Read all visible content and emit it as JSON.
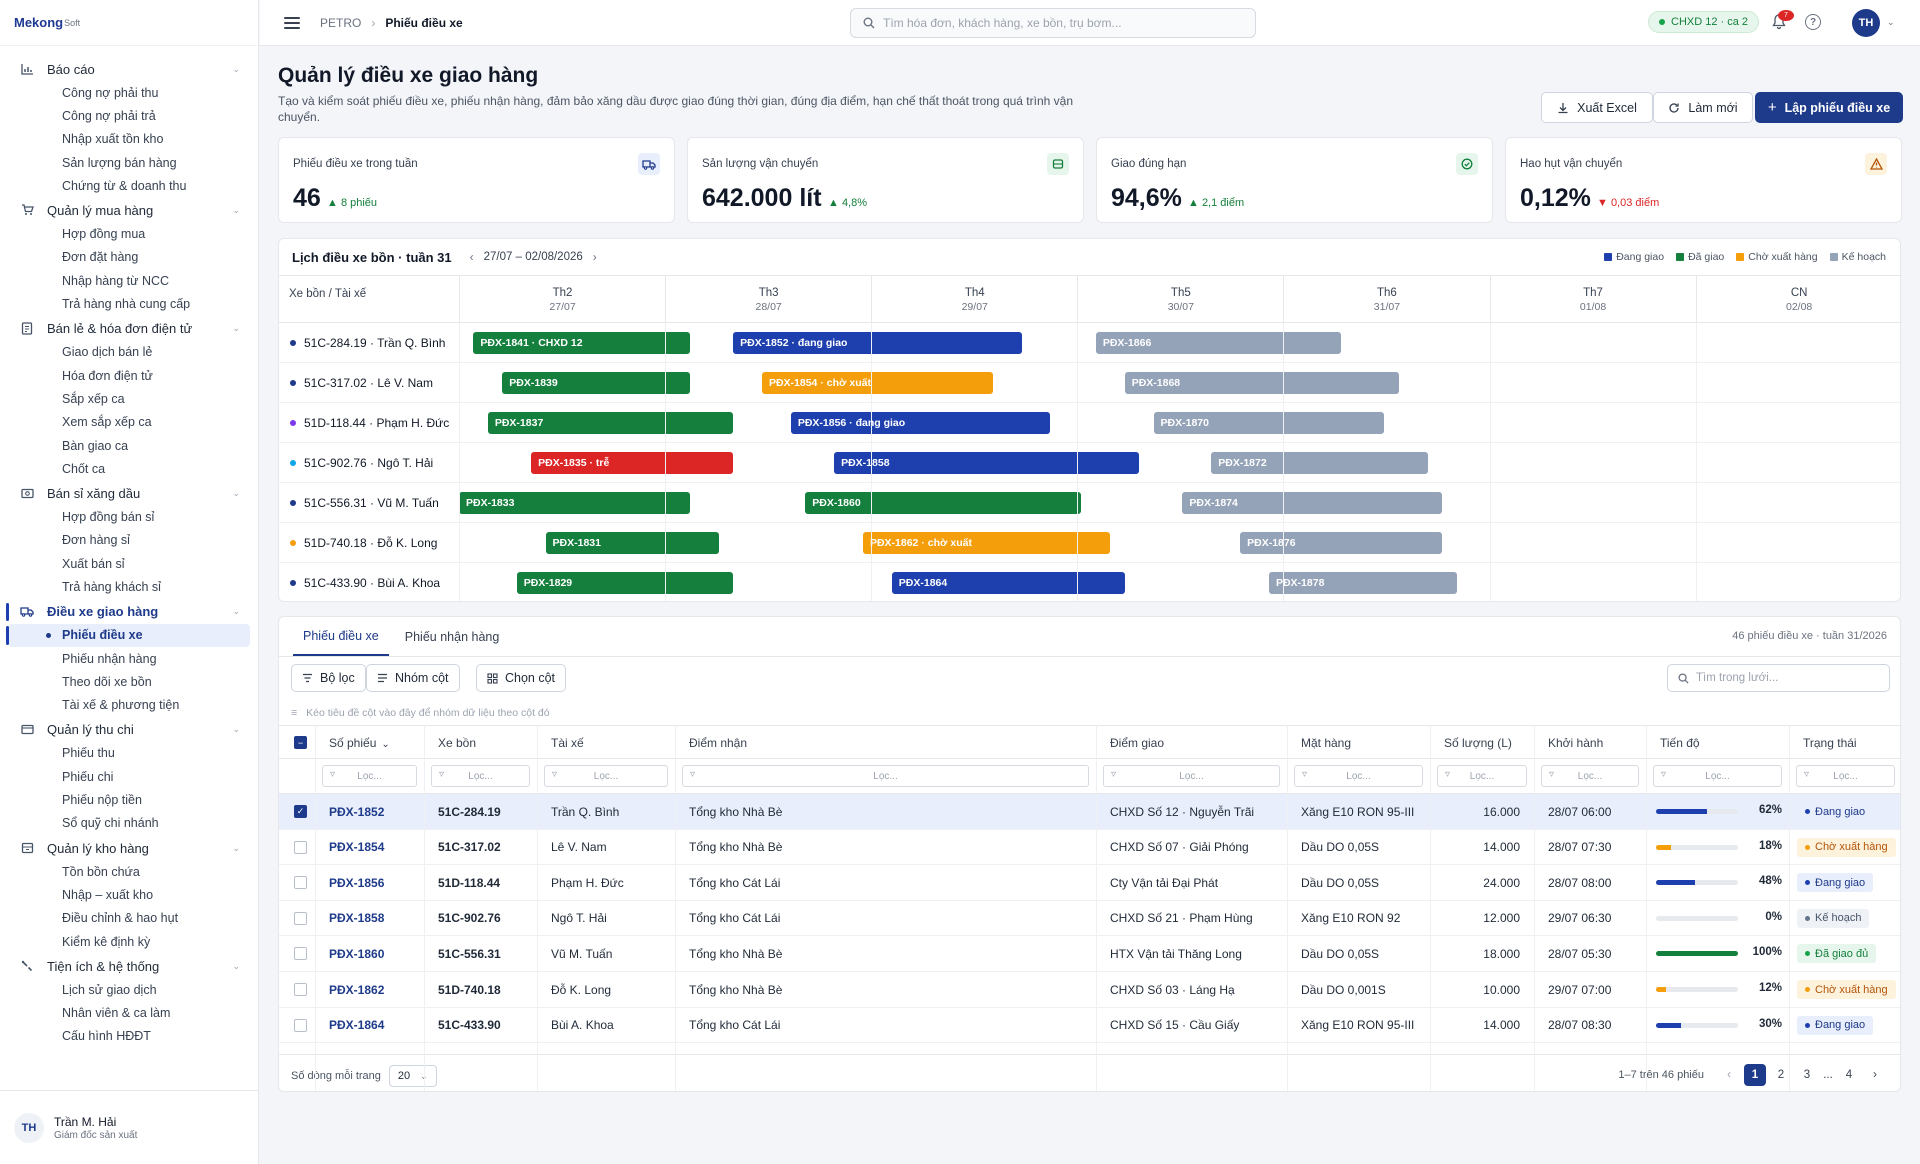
{
  "brand": {
    "name": "Mekong",
    "suffix": "Soft"
  },
  "sidebar": {
    "groups": [
      {
        "label": "Báo cáo",
        "icon": "chart-icon",
        "items": [
          "Công nợ phải thu",
          "Công nợ phải trả",
          "Nhập xuất tồn kho",
          "Sản lượng bán hàng",
          "Chứng từ & doanh thu"
        ]
      },
      {
        "label": "Quản lý mua hàng",
        "icon": "cart-icon",
        "items": [
          "Hợp đồng mua",
          "Đơn đặt hàng",
          "Nhập hàng từ NCC",
          "Trả hàng nhà cung cấp"
        ]
      },
      {
        "label": "Bán lẻ & hóa đơn điện tử",
        "icon": "receipt-icon",
        "items": [
          "Giao dịch bán lẻ",
          "Hóa đơn điện tử",
          "Sắp xếp ca",
          "Xem sắp xếp ca",
          "Bàn giao ca",
          "Chốt ca"
        ]
      },
      {
        "label": "Bán sỉ xăng dầu",
        "icon": "cash-icon",
        "items": [
          "Hợp đồng bán sỉ",
          "Đơn hàng sỉ",
          "Xuất bán sỉ",
          "Trả hàng khách sỉ"
        ]
      },
      {
        "label": "Điều xe giao hàng",
        "icon": "truck-icon",
        "active": true,
        "items": [
          "Phiếu điều xe",
          "Phiếu nhận hàng",
          "Theo dõi xe bồn",
          "Tài xế & phương tiện"
        ]
      },
      {
        "label": "Quản lý thu chi",
        "icon": "wallet-icon",
        "items": [
          "Phiếu thu",
          "Phiếu chi",
          "Phiếu nộp tiền",
          "Sổ quỹ chi nhánh"
        ]
      },
      {
        "label": "Quản lý kho hàng",
        "icon": "warehouse-icon",
        "items": [
          "Tồn bồn chứa",
          "Nhập – xuất kho",
          "Điều chỉnh & hao hụt",
          "Kiểm kê định kỳ"
        ]
      },
      {
        "label": "Tiện ích & hệ thống",
        "icon": "tools-icon",
        "items": [
          "Lịch sử giao dịch",
          "Nhân viên & ca làm",
          "Cấu hình HĐĐT"
        ]
      }
    ],
    "active_item": "Phiếu điều xe"
  },
  "user": {
    "initials": "TH",
    "name": "Trần M. Hải",
    "role": "Giám đốc sản xuất"
  },
  "topbar": {
    "breadcrumb_root": "PETRO",
    "breadcrumb_current": "Phiếu điều xe",
    "search_placeholder": "Tìm hóa đơn, khách hàng, xe bồn, trụ bơm...",
    "shift": "CHXD 12 · ca 2",
    "notif_count": "7",
    "help": "?",
    "avatar": "TH"
  },
  "page": {
    "title": "Quản lý điều xe giao hàng",
    "description": "Tạo và kiểm soát phiếu điều xe, phiếu nhận hàng, đảm bảo xăng dầu được giao đúng thời gian, đúng địa điểm, hạn chế thất thoát trong quá trình vận chuyển.",
    "btn_export": "Xuất Excel",
    "btn_refresh": "Làm mới",
    "btn_create": "Lập phiếu điều xe"
  },
  "kpis": [
    {
      "label": "Phiếu điều xe trong tuần",
      "value": "46",
      "delta": "▲ 8 phiếu",
      "trend": "up",
      "icon": "truck-icon",
      "color": "#1e40af",
      "bg": "#e8eefb"
    },
    {
      "label": "Sản lượng vận chuyển",
      "value": "642.000 lít",
      "delta": "▲ 4,8%",
      "trend": "up",
      "icon": "tank-icon",
      "color": "#15803d",
      "bg": "#e7f6ec"
    },
    {
      "label": "Giao đúng hạn",
      "value": "94,6%",
      "delta": "▲ 2,1 điểm",
      "trend": "up",
      "icon": "check-circle-icon",
      "color": "#15803d",
      "bg": "#e7f6ec"
    },
    {
      "label": "Hao hụt vận chuyển",
      "value": "0,12%",
      "delta": "▼ 0,03 điểm",
      "trend": "down",
      "icon": "warning-icon",
      "color": "#b45309",
      "bg": "#fdf3dc"
    }
  ],
  "schedule": {
    "title": "Lịch điều xe bồn · tuần 31",
    "range": "27/07 – 02/08/2026",
    "column_label": "Xe bồn / Tài xế",
    "legend": [
      {
        "label": "Đang giao",
        "color": "#1e40af"
      },
      {
        "label": "Đã giao",
        "color": "#15803d"
      },
      {
        "label": "Chờ xuất hàng",
        "color": "#f59e0b"
      },
      {
        "label": "Kế hoạch",
        "color": "#94a3b8"
      }
    ],
    "days": [
      {
        "name": "Th2",
        "date": "27/07"
      },
      {
        "name": "Th3",
        "date": "28/07"
      },
      {
        "name": "Th4",
        "date": "29/07"
      },
      {
        "name": "Th5",
        "date": "30/07"
      },
      {
        "name": "Th6",
        "date": "31/07"
      },
      {
        "name": "Th7",
        "date": "01/08"
      },
      {
        "name": "CN",
        "date": "02/08"
      }
    ],
    "rows": [
      {
        "label": "51C-284.19 · Trần Q. Bình",
        "dot": "#1e3a8a",
        "bars": [
          {
            "text": "PĐX-1841 · CHXD 12",
            "status": "done",
            "start": 0.07,
            "end": 1.12
          },
          {
            "text": "PĐX-1852 · đang giao",
            "status": "progress",
            "start": 1.33,
            "end": 2.73
          },
          {
            "text": "PĐX-1866",
            "status": "plan",
            "start": 3.09,
            "end": 4.28
          }
        ]
      },
      {
        "label": "51C-317.02 · Lê V. Nam",
        "dot": "#1e3a8a",
        "bars": [
          {
            "text": "PĐX-1839",
            "status": "done",
            "start": 0.21,
            "end": 1.12
          },
          {
            "text": "PĐX-1854 · chờ xuất",
            "status": "wait",
            "start": 1.47,
            "end": 2.59
          },
          {
            "text": "PĐX-1868",
            "status": "plan",
            "start": 3.23,
            "end": 4.56
          }
        ]
      },
      {
        "label": "51D-118.44 · Phạm H. Đức",
        "dot": "#7c3aed",
        "bars": [
          {
            "text": "PĐX-1837",
            "status": "done",
            "start": 0.14,
            "end": 1.33
          },
          {
            "text": "PĐX-1856 · đang giao",
            "status": "progress",
            "start": 1.61,
            "end": 2.87
          },
          {
            "text": "PĐX-1870",
            "status": "plan",
            "start": 3.37,
            "end": 4.49
          }
        ]
      },
      {
        "label": "51C-902.76 · Ngô T. Hải",
        "dot": "#0ea5e9",
        "bars": [
          {
            "text": "PĐX-1835 · trễ",
            "status": "late",
            "start": 0.35,
            "end": 1.33
          },
          {
            "text": "PĐX-1858",
            "status": "progress",
            "start": 1.82,
            "end": 3.3
          },
          {
            "text": "PĐX-1872",
            "status": "plan",
            "start": 3.65,
            "end": 4.7
          }
        ]
      },
      {
        "label": "51C-556.31 · Vũ M. Tuấn",
        "dot": "#1e3a8a",
        "bars": [
          {
            "text": "PĐX-1833",
            "status": "done",
            "start": 0.0,
            "end": 1.12
          },
          {
            "text": "PĐX-1860",
            "status": "done",
            "start": 1.68,
            "end": 3.02
          },
          {
            "text": "PĐX-1874",
            "status": "plan",
            "start": 3.51,
            "end": 4.77
          }
        ]
      },
      {
        "label": "51D-740.18 · Đỗ K. Long",
        "dot": "#f59e0b",
        "bars": [
          {
            "text": "PĐX-1831",
            "status": "done",
            "start": 0.42,
            "end": 1.26
          },
          {
            "text": "PĐX-1862 · chờ xuất",
            "status": "wait",
            "start": 1.96,
            "end": 3.16
          },
          {
            "text": "PĐX-1876",
            "status": "plan",
            "start": 3.79,
            "end": 4.77
          }
        ]
      },
      {
        "label": "51C-433.90 · Bùi A. Khoa",
        "dot": "#1e3a8a",
        "bars": [
          {
            "text": "PĐX-1829",
            "status": "done",
            "start": 0.28,
            "end": 1.33
          },
          {
            "text": "PĐX-1864",
            "status": "progress",
            "start": 2.1,
            "end": 3.23
          },
          {
            "text": "PĐX-1878",
            "status": "plan",
            "start": 3.93,
            "end": 4.84
          }
        ]
      }
    ],
    "status_colors": {
      "done": "#15803d",
      "progress": "#1e40af",
      "wait": "#f59e0b",
      "plan": "#94a3b8",
      "late": "#dc2626"
    }
  },
  "table": {
    "tabs": [
      "Phiếu điều xe",
      "Phiếu nhận hàng"
    ],
    "count": "46 phiếu điều xe · tuần 31/2026",
    "btn_filter": "Bộ lọc",
    "btn_group": "Nhóm cột",
    "btn_columns": "Chọn cột",
    "grid_search": "Tìm trong lưới...",
    "group_hint": "Kéo tiêu đề cột vào đây để nhóm dữ liệu theo cột đó",
    "filter_placeholder": "Lọc...",
    "headers": [
      "Số phiếu",
      "Xe bồn",
      "Tài xế",
      "Điểm nhận",
      "Điểm giao",
      "Mặt hàng",
      "Số lượng (L)",
      "Khởi hành",
      "Tiến độ",
      "Trạng thái"
    ],
    "sort_indicator": "⌄",
    "rows": [
      {
        "selected": true,
        "id": "PĐX-1852",
        "truck": "51C-284.19",
        "driver": "Trần Q. Bình",
        "from": "Tổng kho Nhà Bè",
        "to": "CHXD Số 12 · Nguyễn Trãi",
        "product": "Xăng E10 RON 95-III",
        "qty": "16.000",
        "depart": "28/07 06:00",
        "progress": 62,
        "progress_label": "62%",
        "status": "Đang giao",
        "status_key": "progress"
      },
      {
        "selected": false,
        "id": "PĐX-1854",
        "truck": "51C-317.02",
        "driver": "Lê V. Nam",
        "from": "Tổng kho Nhà Bè",
        "to": "CHXD Số 07 · Giải Phóng",
        "product": "Dầu DO 0,05S",
        "qty": "14.000",
        "depart": "28/07 07:30",
        "progress": 18,
        "progress_label": "18%",
        "status": "Chờ xuất hàng",
        "status_key": "wait"
      },
      {
        "selected": false,
        "id": "PĐX-1856",
        "truck": "51D-118.44",
        "driver": "Phạm H. Đức",
        "from": "Tổng kho Cát Lái",
        "to": "Cty Vận tải Đại Phát",
        "product": "Dầu DO 0,05S",
        "qty": "24.000",
        "depart": "28/07 08:00",
        "progress": 48,
        "progress_label": "48%",
        "status": "Đang giao",
        "status_key": "progress"
      },
      {
        "selected": false,
        "id": "PĐX-1858",
        "truck": "51C-902.76",
        "driver": "Ngô T. Hải",
        "from": "Tổng kho Cát Lái",
        "to": "CHXD Số 21 · Phạm Hùng",
        "product": "Xăng E10 RON 92",
        "qty": "12.000",
        "depart": "29/07 06:30",
        "progress": 0,
        "progress_label": "0%",
        "status": "Kế hoạch",
        "status_key": "plan"
      },
      {
        "selected": false,
        "id": "PĐX-1860",
        "truck": "51C-556.31",
        "driver": "Vũ M. Tuấn",
        "from": "Tổng kho Nhà Bè",
        "to": "HTX Vận tải Thăng Long",
        "product": "Dầu DO 0,05S",
        "qty": "18.000",
        "depart": "28/07 05:30",
        "progress": 100,
        "progress_label": "100%",
        "status": "Đã giao đủ",
        "status_key": "done"
      },
      {
        "selected": false,
        "id": "PĐX-1862",
        "truck": "51D-740.18",
        "driver": "Đỗ K. Long",
        "from": "Tổng kho Nhà Bè",
        "to": "CHXD Số 03 · Láng Hạ",
        "product": "Dầu DO 0,001S",
        "qty": "10.000",
        "depart": "29/07 07:00",
        "progress": 12,
        "progress_label": "12%",
        "status": "Chờ xuất hàng",
        "status_key": "wait"
      },
      {
        "selected": false,
        "id": "PĐX-1864",
        "truck": "51C-433.90",
        "driver": "Bùi A. Khoa",
        "from": "Tổng kho Cát Lái",
        "to": "CHXD Số 15 · Cầu Giấy",
        "product": "Xăng E10 RON 95-III",
        "qty": "14.000",
        "depart": "28/07 08:30",
        "progress": 30,
        "progress_label": "30%",
        "status": "Đang giao",
        "status_key": "progress"
      }
    ],
    "page_size_label": "Số dòng mỗi trang",
    "page_size": "20",
    "page_info": "1–7 trên 46 phiếu",
    "pages": [
      "1",
      "2",
      "3",
      "...",
      "4"
    ],
    "current_page": "1"
  }
}
